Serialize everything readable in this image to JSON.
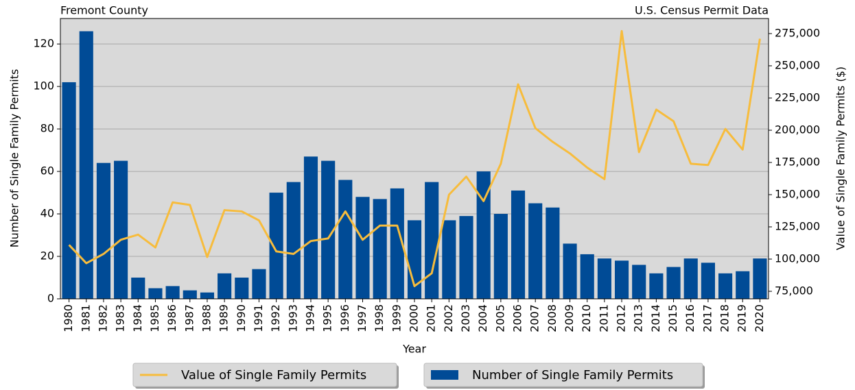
{
  "chart_data": {
    "type": "bar-line",
    "title_left": "Fremont County",
    "title_right": "U.S. Census Permit Data",
    "x_label": "Year",
    "y_label": "Number of Single Family Permits",
    "y2_label": "Value of Single Family Permits ($)",
    "categories": [
      "1980",
      "1981",
      "1982",
      "1983",
      "1984",
      "1985",
      "1986",
      "1987",
      "1988",
      "1989",
      "1990",
      "1991",
      "1992",
      "1993",
      "1994",
      "1995",
      "1996",
      "1997",
      "1998",
      "1999",
      "2000",
      "2001",
      "2002",
      "2003",
      "2004",
      "2005",
      "2006",
      "2007",
      "2008",
      "2009",
      "2010",
      "2011",
      "2012",
      "2013",
      "2014",
      "2015",
      "2016",
      "2017",
      "2018",
      "2019",
      "2020"
    ],
    "series": [
      {
        "name": "Value of Single Family Permits",
        "type": "line",
        "axis": "y2",
        "color": "#f7bc3c",
        "values": [
          111000,
          96800,
          104000,
          115000,
          119000,
          109000,
          144000,
          142000,
          101600,
          138000,
          137000,
          130000,
          106000,
          104000,
          114000,
          116000,
          137000,
          115000,
          126000,
          126000,
          79000,
          89000,
          150000,
          164000,
          145000,
          174000,
          235600,
          201600,
          191000,
          182000,
          171000,
          162000,
          277000,
          183000,
          216000,
          207000,
          174000,
          173000,
          201000,
          185000,
          271000
        ]
      },
      {
        "name": "Number of Single Family Permits",
        "type": "bar",
        "axis": "y",
        "color": "#004b96",
        "values": [
          102,
          126,
          64,
          65,
          10,
          5,
          6,
          4,
          3,
          12,
          10,
          14,
          50,
          55,
          67,
          65,
          56,
          48,
          47,
          52,
          37,
          55,
          37,
          39,
          60,
          40,
          51,
          45,
          43,
          26,
          21,
          19,
          18,
          16,
          12,
          15,
          19,
          17,
          12,
          13,
          19
        ]
      }
    ],
    "ylim": [
      0,
      132
    ],
    "yticks": [
      0,
      20,
      40,
      60,
      80,
      100,
      120
    ],
    "y2lim": [
      69150,
      286700
    ],
    "y2ticks": [
      {
        "value": 75000,
        "label": "75,000"
      },
      {
        "value": 100000,
        "label": "100,000"
      },
      {
        "value": 125000,
        "label": "125,000"
      },
      {
        "value": 150000,
        "label": "150,000"
      },
      {
        "value": 175000,
        "label": "175,000"
      },
      {
        "value": 200000,
        "label": "200,000"
      },
      {
        "value": 225000,
        "label": "225,000"
      },
      {
        "value": 250000,
        "label": "250,000"
      },
      {
        "value": 275000,
        "label": "275,000"
      }
    ],
    "grid": true
  }
}
